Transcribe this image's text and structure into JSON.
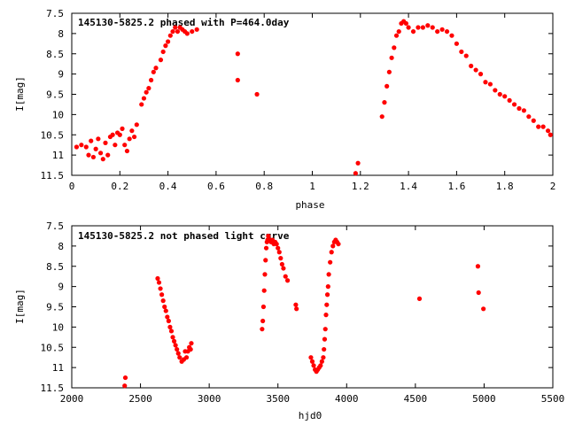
{
  "colors": {
    "points": "#ff0000",
    "frame": "#000000",
    "background": "#ffffff"
  },
  "chart_data": [
    {
      "type": "scatter",
      "title": "145130-5825.2 phased with P=464.0day",
      "xlabel": "phase",
      "ylabel": "I[mag]",
      "xlim": [
        0,
        2
      ],
      "ylim": [
        7.5,
        11.5
      ],
      "y_inverted": true,
      "grid": false,
      "x_ticks": [
        "0",
        "0.2",
        "0.4",
        "0.6",
        "0.8",
        "1",
        "1.2",
        "1.4",
        "1.6",
        "1.8",
        "2"
      ],
      "y_ticks": [
        "7.5",
        "8",
        "8.5",
        "9",
        "9.5",
        "10",
        "10.5",
        "11",
        "11.5"
      ],
      "series": [
        {
          "x": [
            0.02,
            0.04,
            0.06,
            0.07,
            0.08,
            0.09,
            0.1,
            0.11,
            0.12,
            0.13,
            0.14,
            0.15,
            0.16,
            0.17,
            0.18,
            0.19,
            0.2,
            0.21,
            0.22,
            0.23,
            0.24,
            0.25,
            0.26,
            0.27,
            0.29,
            0.3,
            0.31,
            0.32,
            0.33,
            0.34,
            0.35,
            0.37,
            0.38,
            0.39,
            0.4,
            0.41,
            0.42,
            0.43,
            0.44,
            0.45,
            0.46,
            0.47,
            0.48,
            0.5,
            0.52,
            0.69,
            0.69,
            0.77,
            1.18,
            1.19,
            1.29,
            1.3,
            1.31,
            1.32,
            1.33,
            1.34,
            1.35,
            1.36,
            1.37,
            1.38,
            1.39,
            1.4,
            1.42,
            1.44,
            1.46,
            1.48,
            1.5,
            1.52,
            1.54,
            1.56,
            1.58,
            1.6,
            1.62,
            1.64,
            1.66,
            1.68,
            1.7,
            1.72,
            1.74,
            1.76,
            1.78,
            1.8,
            1.82,
            1.84,
            1.86,
            1.88,
            1.9,
            1.92,
            1.94,
            1.96,
            1.98,
            1.99
          ],
          "y": [
            10.8,
            10.75,
            10.8,
            11.0,
            10.65,
            11.05,
            10.85,
            10.6,
            10.95,
            11.1,
            10.7,
            11.0,
            10.55,
            10.5,
            10.75,
            10.45,
            10.5,
            10.35,
            10.75,
            10.9,
            10.6,
            10.4,
            10.55,
            10.25,
            9.75,
            9.6,
            9.45,
            9.35,
            9.15,
            8.95,
            8.85,
            8.65,
            8.45,
            8.3,
            8.2,
            8.05,
            7.95,
            7.85,
            7.95,
            7.85,
            7.9,
            7.95,
            8.0,
            7.95,
            7.9,
            8.5,
            9.15,
            9.5,
            11.45,
            11.2,
            10.05,
            9.7,
            9.3,
            8.95,
            8.6,
            8.35,
            8.05,
            7.95,
            7.75,
            7.7,
            7.75,
            7.85,
            7.95,
            7.85,
            7.85,
            7.8,
            7.85,
            7.95,
            7.9,
            7.95,
            8.05,
            8.25,
            8.45,
            8.55,
            8.8,
            8.9,
            9.0,
            9.2,
            9.25,
            9.4,
            9.5,
            9.55,
            9.65,
            9.75,
            9.85,
            9.9,
            10.05,
            10.15,
            10.3,
            10.3,
            10.4,
            10.5
          ]
        }
      ]
    },
    {
      "type": "scatter",
      "title": "145130-5825.2 not phased light curve",
      "xlabel": "hjd0",
      "ylabel": "I[mag]",
      "xlim": [
        2000,
        5500
      ],
      "ylim": [
        7.5,
        11.5
      ],
      "y_inverted": true,
      "grid": false,
      "x_ticks": [
        "2000",
        "2500",
        "3000",
        "3500",
        "4000",
        "4500",
        "5000",
        "5500"
      ],
      "y_ticks": [
        "7.5",
        "8",
        "8.5",
        "9",
        "9.5",
        "10",
        "10.5",
        "11",
        "11.5"
      ],
      "series": [
        {
          "x": [
            2385,
            2390,
            2625,
            2635,
            2645,
            2655,
            2665,
            2675,
            2685,
            2695,
            2705,
            2715,
            2725,
            2735,
            2745,
            2755,
            2765,
            2775,
            2785,
            2800,
            2815,
            2825,
            2835,
            2845,
            2855,
            2865,
            2870,
            3385,
            3390,
            3395,
            3400,
            3405,
            3410,
            3415,
            3420,
            3425,
            3430,
            3440,
            3450,
            3460,
            3470,
            3480,
            3490,
            3500,
            3510,
            3520,
            3530,
            3540,
            3555,
            3570,
            3630,
            3635,
            3740,
            3750,
            3760,
            3770,
            3780,
            3790,
            3800,
            3810,
            3820,
            3830,
            3835,
            3840,
            3845,
            3850,
            3855,
            3860,
            3865,
            3870,
            3880,
            3890,
            3900,
            3910,
            3920,
            3930,
            3940,
            4530,
            4955,
            4960,
            4995
          ],
          "y": [
            11.45,
            11.25,
            8.8,
            8.9,
            9.05,
            9.2,
            9.35,
            9.5,
            9.6,
            9.75,
            9.85,
            10.0,
            10.1,
            10.25,
            10.35,
            10.45,
            10.55,
            10.65,
            10.75,
            10.85,
            10.8,
            10.6,
            10.75,
            10.6,
            10.5,
            10.55,
            10.4,
            10.05,
            9.85,
            9.5,
            9.1,
            8.7,
            8.35,
            8.05,
            7.9,
            7.85,
            7.75,
            7.85,
            7.9,
            7.85,
            7.95,
            7.9,
            7.95,
            8.05,
            8.15,
            8.3,
            8.45,
            8.55,
            8.75,
            8.85,
            9.45,
            9.55,
            10.75,
            10.85,
            10.95,
            11.05,
            11.1,
            11.05,
            11.0,
            10.95,
            10.85,
            10.75,
            10.55,
            10.3,
            10.05,
            9.7,
            9.45,
            9.2,
            9.0,
            8.7,
            8.4,
            8.15,
            8.0,
            7.9,
            7.85,
            7.9,
            7.95,
            9.3,
            8.5,
            9.15,
            9.55
          ]
        }
      ]
    }
  ]
}
